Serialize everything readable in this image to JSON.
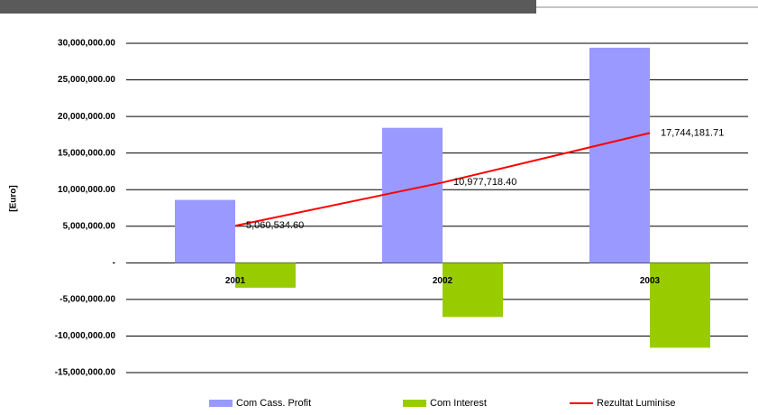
{
  "chart_data": {
    "type": "bar",
    "y_label": "[Euro]",
    "categories": [
      "2001",
      "2002",
      "2003"
    ],
    "series": [
      {
        "name": "Com Cass. Profit",
        "color": "#9999ff",
        "values": [
          8600000,
          18450000,
          29400000
        ]
      },
      {
        "name": "Com Interest",
        "color": "#99cc00",
        "values": [
          -3400000,
          -7400000,
          -11600000
        ]
      },
      {
        "name": "Rezultat Luminise",
        "color": "#ff0000",
        "type": "line",
        "values": [
          5060534.6,
          10977718.4,
          17744181.71
        ],
        "value_labels": [
          "5,060,534.60",
          "10,977,718.40",
          "17,744,181.71"
        ]
      }
    ],
    "ylim": [
      -15000000,
      30000000
    ],
    "yticks": [
      {
        "value": -15000000,
        "label": "-15,000,000.00"
      },
      {
        "value": -10000000,
        "label": "-10,000,000.00"
      },
      {
        "value": -5000000,
        "label": "-5,000,000.00"
      },
      {
        "value": 0,
        "label": "-"
      },
      {
        "value": 5000000,
        "label": "5,000,000.00"
      },
      {
        "value": 10000000,
        "label": "10,000,000.00"
      },
      {
        "value": 15000000,
        "label": "15,000,000.00"
      },
      {
        "value": 20000000,
        "label": "20,000,000.00"
      },
      {
        "value": 25000000,
        "label": "25,000,000.00"
      },
      {
        "value": 30000000,
        "label": "30,000,000.00"
      }
    ],
    "grid": true
  }
}
